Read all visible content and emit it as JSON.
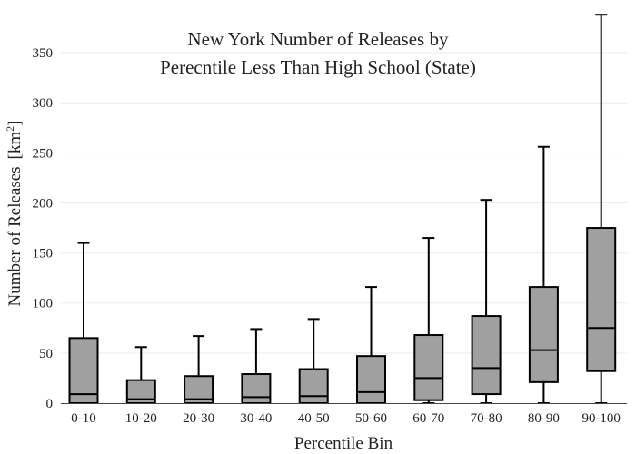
{
  "chart_data": {
    "type": "box",
    "title_lines": [
      "New York Number of Releases by",
      "Perecntile Less Than High School (State)"
    ],
    "xlabel": "Percentile Bin",
    "ylabel": "Number of Releases",
    "ylabel_unit_base": "[km",
    "ylabel_unit_sup": "2",
    "ylabel_unit_close": "]",
    "ylim": [
      0,
      390
    ],
    "yticks": [
      0,
      50,
      100,
      150,
      200,
      250,
      300,
      350
    ],
    "grid": true,
    "categories": [
      "0-10",
      "10-20",
      "20-30",
      "30-40",
      "40-50",
      "50-60",
      "60-70",
      "70-80",
      "80-90",
      "90-100"
    ],
    "boxes": [
      {
        "min": 0,
        "q1": 0,
        "median": 9,
        "q3": 65,
        "max": 160
      },
      {
        "min": 0,
        "q1": 0,
        "median": 4,
        "q3": 23,
        "max": 56
      },
      {
        "min": 0,
        "q1": 0,
        "median": 4,
        "q3": 27,
        "max": 67
      },
      {
        "min": 0,
        "q1": 0,
        "median": 6,
        "q3": 29,
        "max": 74
      },
      {
        "min": 0,
        "q1": 0,
        "median": 7,
        "q3": 34,
        "max": 84
      },
      {
        "min": 0,
        "q1": 0,
        "median": 11,
        "q3": 47,
        "max": 116
      },
      {
        "min": 0,
        "q1": 3,
        "median": 25,
        "q3": 68,
        "max": 165
      },
      {
        "min": 0,
        "q1": 9,
        "median": 35,
        "q3": 87,
        "max": 203
      },
      {
        "min": 0,
        "q1": 21,
        "median": 53,
        "q3": 116,
        "max": 256
      },
      {
        "min": 0,
        "q1": 32,
        "median": 75,
        "q3": 175,
        "max": 388
      }
    ]
  }
}
